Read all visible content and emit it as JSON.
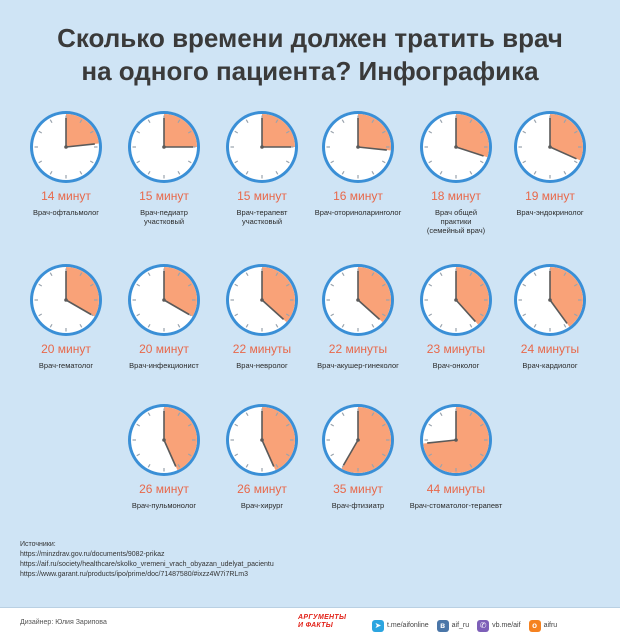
{
  "title_lines": [
    "Сколько времени должен тратить врач",
    "на одного пациента? Инфографика"
  ],
  "chart_data": {
    "type": "clock-infographic",
    "clock_minutes_full": 60,
    "items": [
      {
        "minutes": 14,
        "minutes_label": "14 минут",
        "role": [
          "Врач-офтальмолог"
        ]
      },
      {
        "minutes": 15,
        "minutes_label": "15 минут",
        "role": [
          "Врач-педиатр",
          "участковый"
        ]
      },
      {
        "minutes": 15,
        "minutes_label": "15 минут",
        "role": [
          "Врач-терапевт",
          "участковый"
        ]
      },
      {
        "minutes": 16,
        "minutes_label": "16 минут",
        "role": [
          "Врач-оториноларинголог"
        ]
      },
      {
        "minutes": 18,
        "minutes_label": "18 минут",
        "role": [
          "Врач общей",
          "практики",
          "(семейный врач)"
        ]
      },
      {
        "minutes": 19,
        "minutes_label": "19 минут",
        "role": [
          "Врач-эндокринолог"
        ]
      },
      {
        "minutes": 20,
        "minutes_label": "20 минут",
        "role": [
          "Врач-гематолог"
        ]
      },
      {
        "minutes": 20,
        "minutes_label": "20 минут",
        "role": [
          "Врач-инфекционист"
        ]
      },
      {
        "minutes": 22,
        "minutes_label": "22 минуты",
        "role": [
          "Врач-невролог"
        ]
      },
      {
        "minutes": 22,
        "minutes_label": "22 минуты",
        "role": [
          "Врач-акушер-гинеколог"
        ]
      },
      {
        "minutes": 23,
        "minutes_label": "23 минуты",
        "role": [
          "Врач-онколог"
        ]
      },
      {
        "minutes": 24,
        "minutes_label": "24 минуты",
        "role": [
          "Врач-кардиолог"
        ]
      },
      {
        "minutes": 26,
        "minutes_label": "26 минут",
        "role": [
          "Врач-пульмонолог"
        ]
      },
      {
        "minutes": 26,
        "minutes_label": "26 минут",
        "role": [
          "Врач-хирург"
        ]
      },
      {
        "minutes": 35,
        "minutes_label": "35 минут",
        "role": [
          "Врач-фтизиатр"
        ]
      },
      {
        "minutes": 44,
        "minutes_label": "44 минуты",
        "role": [
          "Врач-стоматолог-терапевт"
        ]
      }
    ]
  },
  "sources": {
    "heading": "Источники:",
    "lines": [
      "https://minzdrav.gov.ru/documents/9082-prikaz",
      "https://aif.ru/society/healthcare/skolko_vremeni_vrach_obyazan_udelyat_pacientu",
      "https://www.garant.ru/products/ipo/prime/doc/71487580/#ixzz4W7i7RLm3"
    ]
  },
  "footer": {
    "designer": "Дизайнер: Юлия Зарипова",
    "brand_lines": [
      "АРГУМЕНТЫ",
      "И ФАКТЫ"
    ],
    "socials": [
      {
        "icon": "telegram-icon",
        "label": "t.me/aifonline",
        "color": "#2ca5e0"
      },
      {
        "icon": "vk-icon",
        "label": "aif_ru",
        "color": "#4a76a8"
      },
      {
        "icon": "viber-icon",
        "label": "vb.me/aif",
        "color": "#7d5fb8"
      },
      {
        "icon": "ok-icon",
        "label": "aifru",
        "color": "#f58220"
      }
    ]
  },
  "colors": {
    "clock_rim": "#3a8fd6",
    "clock_face": "#ffffff",
    "sector_fill": "#f9a278",
    "minutes_text": "#e8684a",
    "tick": "#9aa3ad",
    "hand": "#5a5a5a"
  }
}
